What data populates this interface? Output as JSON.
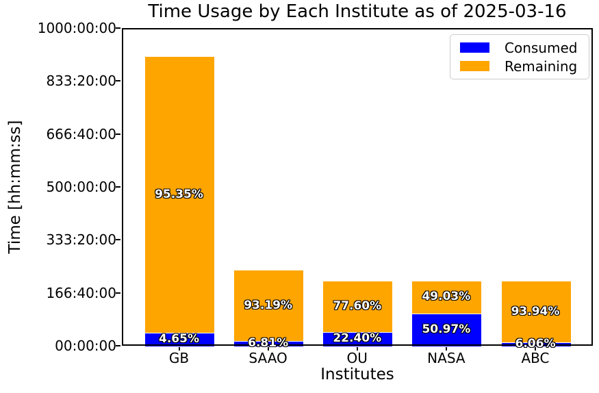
{
  "chart_data": {
    "type": "bar",
    "stacked": true,
    "title": "Time Usage by Each Institute as of 2025-03-16",
    "xlabel": "Institutes",
    "ylabel": "Time [hh:mm:ss]",
    "categories": [
      "GB",
      "SAAO",
      "OU",
      "NASA",
      "ABC"
    ],
    "ytick_labels": [
      "00:00:00",
      "166:40:00",
      "333:20:00",
      "500:00:00",
      "666:40:00",
      "833:20:00",
      "1000:00:00"
    ],
    "ylim_hours": [
      0,
      1000
    ],
    "grid": false,
    "legend_position": "upper right",
    "colors": {
      "consumed": "#0000ff",
      "remaining": "#ffa500",
      "bar_edge": "#ffffff",
      "label_text": "#ffffff",
      "label_outline": "#000000"
    },
    "series": [
      {
        "name": "Consumed",
        "color": "#0000ff",
        "values_hours": [
          42.4,
          16.3,
          45.9,
          104.3,
          12.4
        ],
        "percents": [
          4.65,
          6.81,
          22.4,
          50.97,
          6.06
        ],
        "labels": [
          "4.65%",
          "6.81%",
          "22.40%",
          "50.97%",
          "6.06%"
        ]
      },
      {
        "name": "Remaining",
        "color": "#ffa500",
        "values_hours": [
          869.2,
          222.9,
          158.8,
          100.4,
          192.3
        ],
        "percents": [
          95.35,
          93.19,
          77.6,
          49.03,
          93.94
        ],
        "labels": [
          "95.35%",
          "93.19%",
          "77.60%",
          "49.03%",
          "93.94%"
        ]
      }
    ],
    "totals_hours": [
      911.6,
      239.2,
      204.7,
      204.7,
      204.7
    ]
  }
}
